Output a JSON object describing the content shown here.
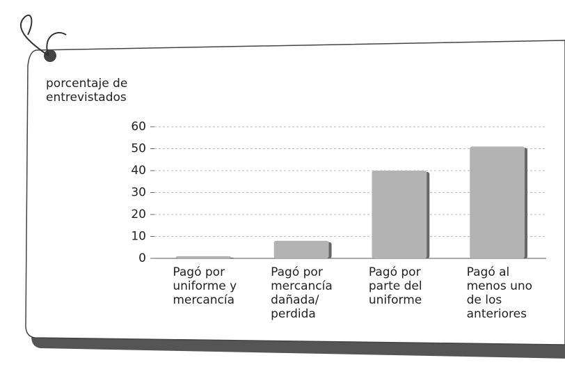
{
  "chart_data": {
    "type": "bar",
    "ylabel": [
      "porcentaje de",
      "entrevistados"
    ],
    "categories": [
      "Pagó por uniforme y mercancía",
      "Pagó por mercancía dañada/ perdida",
      "Pagó por parte del uniforme",
      "Pagó al menos uno de los anteriores"
    ],
    "values": [
      1,
      8,
      40,
      51
    ],
    "color": "#b3b3b3",
    "ylim": [
      0,
      60
    ],
    "yticks": [
      0,
      10,
      20,
      30,
      40,
      50,
      60
    ],
    "grid": true
  }
}
